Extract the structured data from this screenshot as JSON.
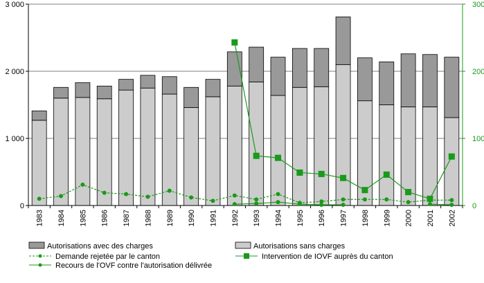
{
  "chart_data": {
    "type": "bar",
    "categories": [
      "1983",
      "1984",
      "1985",
      "1986",
      "1987",
      "1988",
      "1989",
      "1990",
      "1991",
      "1992",
      "1993",
      "1994",
      "1995",
      "1996",
      "1997",
      "1998",
      "1999",
      "2000",
      "2001",
      "2002"
    ],
    "left_axis": {
      "ylim": [
        0,
        3000
      ],
      "ticks": [
        0,
        1000,
        2000,
        3000
      ],
      "tick_labels": [
        "0",
        "1 000",
        "2 000",
        "3 000"
      ]
    },
    "right_axis": {
      "ylim": [
        0,
        300
      ],
      "ticks": [
        0,
        100,
        200,
        300
      ],
      "tick_labels": [
        "0",
        "100",
        "200",
        "300"
      ],
      "color": "#199a19"
    },
    "stacked_bars": [
      {
        "name": "Autorisations sans charges",
        "color": "#cccccc",
        "values": [
          1270,
          1600,
          1610,
          1590,
          1720,
          1750,
          1660,
          1460,
          1620,
          1780,
          1840,
          1640,
          1760,
          1770,
          2100,
          1560,
          1500,
          1470,
          1470,
          1310
        ]
      },
      {
        "name": "Autorisations avec des charges",
        "color": "#999999",
        "values": [
          140,
          160,
          220,
          190,
          160,
          190,
          260,
          300,
          260,
          510,
          520,
          570,
          580,
          570,
          710,
          640,
          640,
          790,
          780,
          900
        ]
      }
    ],
    "line_series": [
      {
        "name": "Demande rejetée par le canton",
        "axis": "right",
        "style": "dashed",
        "marker": "circle",
        "color": "#199a19",
        "values": [
          10,
          14,
          31,
          19,
          17,
          13,
          22,
          12,
          7,
          15,
          9,
          17,
          4,
          6,
          9,
          9,
          9,
          5,
          8,
          8
        ]
      },
      {
        "name": "Intervention de IOVF auprès du canton",
        "axis": "right",
        "style": "solid",
        "marker": "square",
        "color": "#199a19",
        "values": [
          null,
          null,
          null,
          null,
          null,
          null,
          null,
          null,
          null,
          243,
          74,
          71,
          49,
          47,
          41,
          23,
          46,
          20,
          10,
          73
        ]
      },
      {
        "name": "Recours de l'OVF contre l'autorisation délivrée",
        "axis": "right",
        "style": "solid",
        "marker": "circle",
        "color": "#199a19",
        "values": [
          null,
          null,
          null,
          null,
          null,
          null,
          null,
          null,
          null,
          2,
          3,
          5,
          2,
          1,
          1,
          null,
          null,
          null,
          2,
          1
        ]
      }
    ],
    "grid": "horizontal",
    "legend_position": "bottom"
  },
  "legend": {
    "bar_with_charges": "Autorisations avec des charges",
    "bar_without_charges": "Autorisations sans charges",
    "line_rejected": "Demande rejetée par le canton",
    "line_intervention": "Intervention de IOVF auprès du canton",
    "line_appeal": "Recours de l'OVF contre l'autorisation délivrée"
  }
}
